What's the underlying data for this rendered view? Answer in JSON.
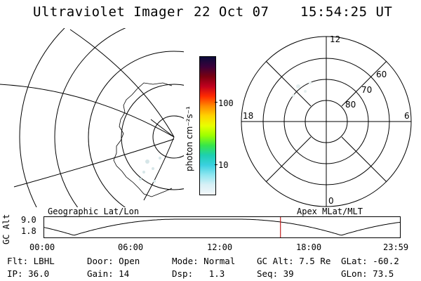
{
  "header": {
    "title": "Ultraviolet Imager",
    "date": "22 Oct 07",
    "time": "15:54:25 UT"
  },
  "colorbar": {
    "unit_label": "photon cm⁻²s⁻¹",
    "ticks": [
      "100",
      "10"
    ],
    "colors": [
      "#0b0b3a",
      "#3b003a",
      "#7a0010",
      "#c0001e",
      "#ff2b00",
      "#ff8a00",
      "#ffd400",
      "#e8ff00",
      "#9cff00",
      "#36e54b",
      "#1ecfb0",
      "#3ad0e0",
      "#8fe6f0",
      "#d8f0f6",
      "#f2f7fa"
    ]
  },
  "right_plot": {
    "mlt_labels": {
      "top": "12",
      "left": "18",
      "right": "6",
      "bottom": "0"
    },
    "lat_labels": [
      "60",
      "70",
      "80"
    ]
  },
  "timeline": {
    "left_label": "Geographic Lat/Lon",
    "right_label": "Apex MLat/MLT",
    "y_axis_label": "GC Alt",
    "y_ticks": [
      "9.0",
      "1.8"
    ],
    "x_ticks": [
      "00:00",
      "06:00",
      "12:00",
      "18:00",
      "23:59"
    ],
    "marker_time": "15:54:25",
    "marker_color": "#c02020"
  },
  "info": {
    "row1": [
      {
        "label": "Flt:",
        "value": "LBHL"
      },
      {
        "label": "Door:",
        "value": "Open"
      },
      {
        "label": "Mode:",
        "value": "Normal"
      },
      {
        "label": "GC Alt:",
        "value": "7.5 Re"
      },
      {
        "label": "GLat:",
        "value": "-60.2"
      }
    ],
    "row2": [
      {
        "label": "IP:",
        "value": "36.0"
      },
      {
        "label": "Gain:",
        "value": "14"
      },
      {
        "label": "Dsp:",
        "value": "1.3"
      },
      {
        "label": "Seq:",
        "value": "39"
      },
      {
        "label": "GLon:",
        "value": "73.5"
      }
    ]
  }
}
